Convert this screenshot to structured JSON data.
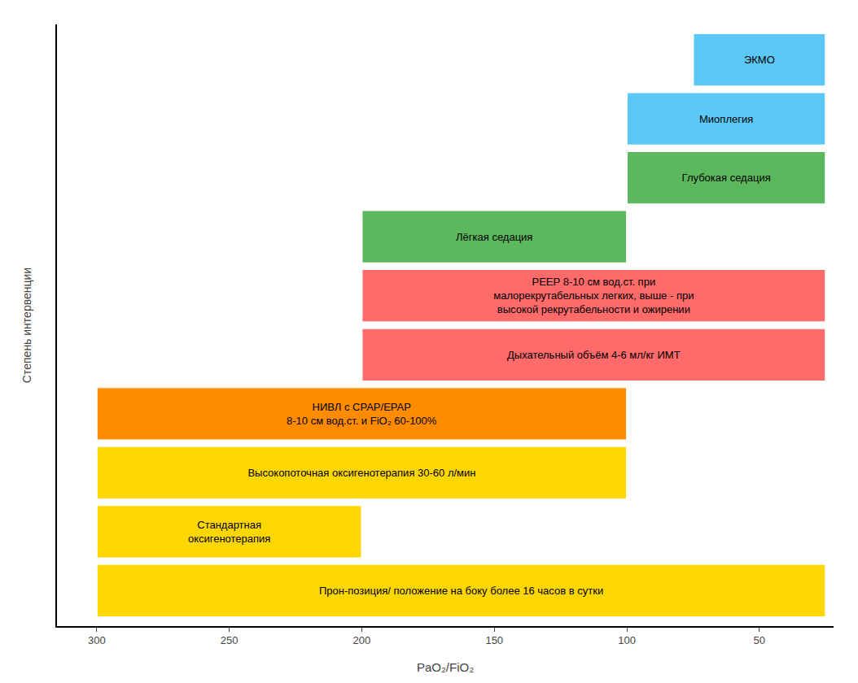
{
  "chart_data": {
    "type": "bar",
    "orientation": "horizontal",
    "xlabel": "PaO₂/FiO₂",
    "ylabel": "Степень интервенции",
    "categories": [
      "Прон-позиция/ положение на боку более 16 часов в сутки",
      "Стандартная\nоксигенотерапия",
      "Высокопоточная оксигенотерапия 30-60 л/мин",
      "НИВЛ с СРАР/ЕРАР\n8-10 см вод.ст. и FiO₂ 60-100%",
      "Дыхательный объём 4-6 мл/кг ИМТ",
      "РЕЕР 8-10 см вод.ст. при\nмалорекрутабельных легких, выше - при\nвысокой рекрутабельности и ожирении",
      "Лёгкая седация",
      "Глубокая седация",
      "Миоплегия",
      "ЭКМО"
    ],
    "x_start": [
      25,
      200,
      100,
      100,
      25,
      25,
      100,
      25,
      25,
      25
    ],
    "x_end": [
      300,
      300,
      300,
      300,
      200,
      200,
      200,
      100,
      100,
      75
    ],
    "colors": [
      "#FFD700",
      "#FFD700",
      "#FFD700",
      "#FF8C00",
      "#FF6B6B",
      "#FF6B6B",
      "#5CB85C",
      "#5CB85C",
      "#5BC8F5",
      "#5BC8F5"
    ],
    "xlim": [
      315,
      22
    ],
    "xticks": [
      300,
      250,
      200,
      150,
      100,
      50
    ],
    "tick_labels": "x",
    "grid": false
  }
}
